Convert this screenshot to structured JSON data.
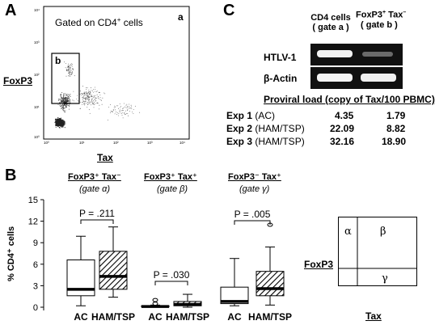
{
  "panelA": {
    "letter": "A",
    "corner": "a",
    "gated_text": "Gated on CD4",
    "gated_sup": "+",
    "gated_text2": " cells",
    "gate_label": "b",
    "ylabel": "FoxP3",
    "xlabel": "Tax",
    "y_ticks": [
      "10⁴",
      "10³",
      "10²",
      "10¹",
      "10⁰"
    ],
    "x_ticks": [
      "10⁰",
      "10¹",
      "10²",
      "10³",
      "10⁴"
    ]
  },
  "panelC": {
    "letter": "C",
    "col1": "CD4 cells",
    "col1b": "( gate a )",
    "col2": "FoxP3",
    "col2_sup": "+",
    "col2_tax": "Tax",
    "col2_tax_sup": "–",
    "col2b": "( gate b )",
    "row1": "HTLV-1",
    "row2": "β-Actin",
    "table_title": "Proviral load  (copy of Tax/100 PBMC)",
    "rows": [
      {
        "exp": "Exp 1",
        "group": "(AC)",
        "v1": "4.35",
        "v2": "1.79"
      },
      {
        "exp": "Exp 2",
        "group": "(HAM/TSP)",
        "v1": "22.09",
        "v2": "8.82"
      },
      {
        "exp": "Exp 3",
        "group": "(HAM/TSP)",
        "v1": "32.16",
        "v2": "18.90"
      }
    ]
  },
  "panelB": {
    "letter": "B",
    "ylabel": "% CD4⁺ cells",
    "y_ticks": [
      "15",
      "12",
      "9",
      "6",
      "3",
      "0"
    ],
    "groups": [
      {
        "title": "FoxP3⁺ Tax⁻",
        "gate": "(gate α)",
        "p": "P = .211"
      },
      {
        "title": "FoxP3⁺ Tax⁺",
        "gate": "(gate β)",
        "p": "P = .030"
      },
      {
        "title": "FoxP3⁻ Tax⁺",
        "gate": "(gate γ)",
        "p": "P = .005"
      }
    ],
    "x_labels": [
      "AC",
      "HAM/TSP",
      "AC",
      "HAM/TSP",
      "AC",
      "HAM/TSP"
    ]
  },
  "quad": {
    "ylabel": "FoxP3",
    "xlabel": "Tax",
    "alpha": "α",
    "beta": "β",
    "gamma": "γ"
  },
  "chart_data": {
    "type": "box",
    "ylabel": "% CD4⁺ cells",
    "ylim": [
      0,
      15
    ],
    "series": [
      {
        "name": "AC",
        "gate": "α",
        "min": 0.2,
        "q1": 1.6,
        "median": 2.5,
        "q3": 6.6,
        "max": 9.9,
        "outliers": []
      },
      {
        "name": "HAM/TSP",
        "gate": "α",
        "min": 1.4,
        "q1": 2.5,
        "median": 4.3,
        "q3": 7.8,
        "max": 11.2,
        "outliers": []
      },
      {
        "name": "AC",
        "gate": "β",
        "min": 0.0,
        "q1": 0.05,
        "median": 0.1,
        "q3": 0.2,
        "max": 0.3,
        "outliers": [
          0.5,
          1.0
        ]
      },
      {
        "name": "HAM/TSP",
        "gate": "β",
        "min": 0.0,
        "q1": 0.2,
        "median": 0.4,
        "q3": 0.8,
        "max": 1.8,
        "outliers": []
      },
      {
        "name": "AC",
        "gate": "γ",
        "min": 0.2,
        "q1": 0.5,
        "median": 0.8,
        "q3": 2.8,
        "max": 6.8,
        "outliers": []
      },
      {
        "name": "HAM/TSP",
        "gate": "γ",
        "min": 0.3,
        "q1": 1.6,
        "median": 2.6,
        "q3": 5.0,
        "max": 8.4,
        "outliers": [
          11.5
        ]
      }
    ]
  }
}
